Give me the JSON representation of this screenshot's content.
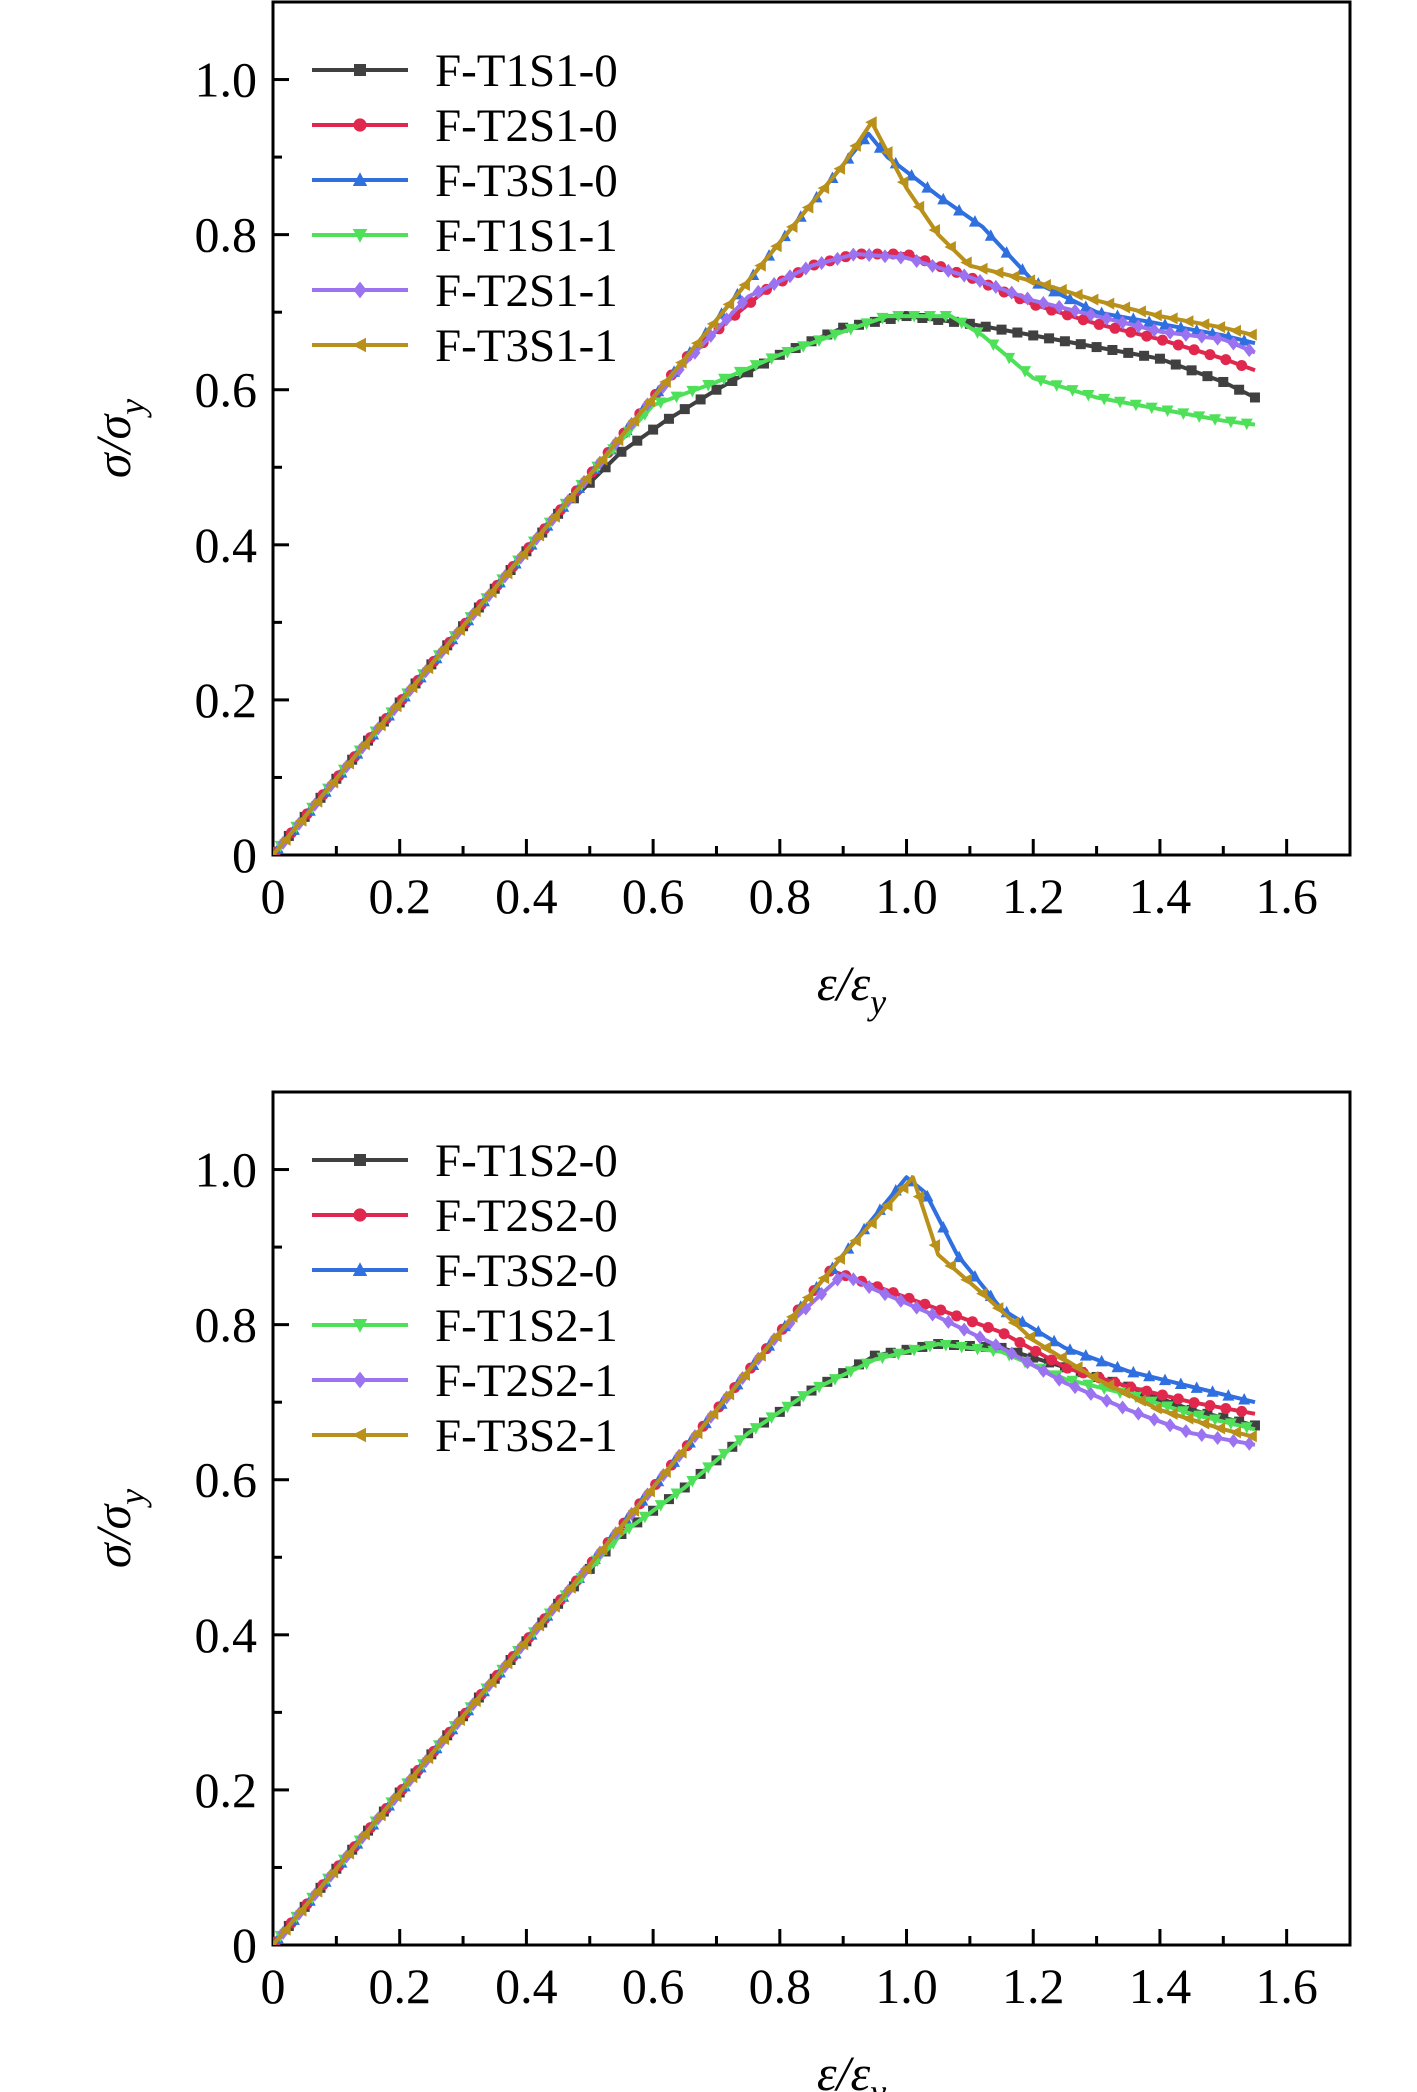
{
  "chart_data": [
    {
      "type": "line",
      "panel": "top",
      "xlabel": "ε/ε_y",
      "ylabel": "σ/σ_y",
      "xlim": [
        0,
        1.7
      ],
      "ylim": [
        0,
        1.1
      ],
      "xticks": [
        "0",
        "0.2",
        "0.4",
        "0.6",
        "0.8",
        "1.0",
        "1.2",
        "1.4",
        "1.6"
      ],
      "yticks": [
        "0",
        "0.2",
        "0.4",
        "0.6",
        "0.8",
        "1.0"
      ],
      "legend_position": "top-left",
      "series": [
        {
          "name": "F-T1S1-0",
          "color": "#404040",
          "marker": "square",
          "points": [
            [
              0,
              0
            ],
            [
              0.3,
              0.295
            ],
            [
              0.45,
              0.44
            ],
            [
              0.55,
              0.52
            ],
            [
              0.62,
              0.56
            ],
            [
              0.7,
              0.6
            ],
            [
              0.8,
              0.645
            ],
            [
              0.9,
              0.68
            ],
            [
              1.0,
              0.695
            ],
            [
              1.1,
              0.685
            ],
            [
              1.2,
              0.67
            ],
            [
              1.3,
              0.655
            ],
            [
              1.4,
              0.64
            ],
            [
              1.5,
              0.61
            ],
            [
              1.55,
              0.59
            ]
          ]
        },
        {
          "name": "F-T2S1-0",
          "color": "#e0284e",
          "marker": "circle",
          "points": [
            [
              0,
              0
            ],
            [
              0.3,
              0.295
            ],
            [
              0.5,
              0.49
            ],
            [
              0.6,
              0.59
            ],
            [
              0.65,
              0.64
            ],
            [
              0.72,
              0.69
            ],
            [
              0.78,
              0.73
            ],
            [
              0.85,
              0.76
            ],
            [
              0.92,
              0.775
            ],
            [
              1.0,
              0.775
            ],
            [
              1.1,
              0.745
            ],
            [
              1.2,
              0.71
            ],
            [
              1.3,
              0.685
            ],
            [
              1.4,
              0.665
            ],
            [
              1.5,
              0.64
            ],
            [
              1.55,
              0.625
            ]
          ]
        },
        {
          "name": "F-T3S1-0",
          "color": "#2f6fe0",
          "marker": "triangle-up",
          "points": [
            [
              0,
              0
            ],
            [
              0.3,
              0.295
            ],
            [
              0.5,
              0.49
            ],
            [
              0.6,
              0.59
            ],
            [
              0.7,
              0.69
            ],
            [
              0.8,
              0.79
            ],
            [
              0.9,
              0.89
            ],
            [
              0.94,
              0.93
            ],
            [
              0.97,
              0.9
            ],
            [
              1.05,
              0.85
            ],
            [
              1.12,
              0.81
            ],
            [
              1.2,
              0.74
            ],
            [
              1.3,
              0.7
            ],
            [
              1.4,
              0.685
            ],
            [
              1.5,
              0.67
            ],
            [
              1.55,
              0.66
            ]
          ]
        },
        {
          "name": "F-T1S1-1",
          "color": "#4fe05a",
          "marker": "triangle-down",
          "points": [
            [
              0,
              0
            ],
            [
              0.3,
              0.295
            ],
            [
              0.5,
              0.49
            ],
            [
              0.6,
              0.58
            ],
            [
              0.7,
              0.61
            ],
            [
              0.8,
              0.645
            ],
            [
              0.9,
              0.675
            ],
            [
              0.97,
              0.695
            ],
            [
              1.07,
              0.695
            ],
            [
              1.12,
              0.67
            ],
            [
              1.2,
              0.615
            ],
            [
              1.3,
              0.59
            ],
            [
              1.4,
              0.575
            ],
            [
              1.5,
              0.56
            ],
            [
              1.55,
              0.555
            ]
          ]
        },
        {
          "name": "F-T2S1-1",
          "color": "#9b72f0",
          "marker": "diamond",
          "points": [
            [
              0,
              0
            ],
            [
              0.3,
              0.295
            ],
            [
              0.5,
              0.49
            ],
            [
              0.6,
              0.59
            ],
            [
              0.68,
              0.66
            ],
            [
              0.75,
              0.72
            ],
            [
              0.85,
              0.76
            ],
            [
              0.92,
              0.775
            ],
            [
              1.0,
              0.77
            ],
            [
              1.1,
              0.745
            ],
            [
              1.2,
              0.715
            ],
            [
              1.3,
              0.695
            ],
            [
              1.4,
              0.675
            ],
            [
              1.5,
              0.665
            ],
            [
              1.55,
              0.648
            ]
          ]
        },
        {
          "name": "F-T3S1-1",
          "color": "#b8901a",
          "marker": "triangle-left",
          "points": [
            [
              0,
              0
            ],
            [
              0.3,
              0.295
            ],
            [
              0.5,
              0.49
            ],
            [
              0.6,
              0.59
            ],
            [
              0.7,
              0.69
            ],
            [
              0.8,
              0.79
            ],
            [
              0.9,
              0.89
            ],
            [
              0.945,
              0.945
            ],
            [
              1.0,
              0.86
            ],
            [
              1.05,
              0.8
            ],
            [
              1.1,
              0.76
            ],
            [
              1.2,
              0.74
            ],
            [
              1.3,
              0.715
            ],
            [
              1.4,
              0.695
            ],
            [
              1.5,
              0.68
            ],
            [
              1.55,
              0.67
            ]
          ]
        }
      ]
    },
    {
      "type": "line",
      "panel": "bottom",
      "xlabel": "ε/ε_y",
      "ylabel": "σ/σ_y",
      "xlim": [
        0,
        1.7
      ],
      "ylim": [
        0,
        1.1
      ],
      "xticks": [
        "0",
        "0.2",
        "0.4",
        "0.6",
        "0.8",
        "1.0",
        "1.2",
        "1.4",
        "1.6"
      ],
      "yticks": [
        "0",
        "0.2",
        "0.4",
        "0.6",
        "0.8",
        "1.0"
      ],
      "legend_position": "top-left",
      "series": [
        {
          "name": "F-T1S2-0",
          "color": "#404040",
          "marker": "square",
          "points": [
            [
              0,
              0
            ],
            [
              0.3,
              0.295
            ],
            [
              0.45,
              0.44
            ],
            [
              0.55,
              0.53
            ],
            [
              0.65,
              0.59
            ],
            [
              0.75,
              0.66
            ],
            [
              0.85,
              0.715
            ],
            [
              0.95,
              0.76
            ],
            [
              1.05,
              0.775
            ],
            [
              1.15,
              0.77
            ],
            [
              1.25,
              0.745
            ],
            [
              1.35,
              0.72
            ],
            [
              1.45,
              0.69
            ],
            [
              1.55,
              0.67
            ]
          ]
        },
        {
          "name": "F-T2S2-0",
          "color": "#e0284e",
          "marker": "circle",
          "points": [
            [
              0,
              0
            ],
            [
              0.3,
              0.295
            ],
            [
              0.5,
              0.49
            ],
            [
              0.6,
              0.59
            ],
            [
              0.7,
              0.69
            ],
            [
              0.8,
              0.79
            ],
            [
              0.88,
              0.87
            ],
            [
              0.95,
              0.85
            ],
            [
              1.05,
              0.82
            ],
            [
              1.15,
              0.79
            ],
            [
              1.25,
              0.745
            ],
            [
              1.35,
              0.72
            ],
            [
              1.45,
              0.7
            ],
            [
              1.55,
              0.685
            ]
          ]
        },
        {
          "name": "F-T3S2-0",
          "color": "#2f6fe0",
          "marker": "triangle-up",
          "points": [
            [
              0,
              0
            ],
            [
              0.3,
              0.295
            ],
            [
              0.5,
              0.49
            ],
            [
              0.6,
              0.59
            ],
            [
              0.7,
              0.69
            ],
            [
              0.8,
              0.79
            ],
            [
              0.9,
              0.89
            ],
            [
              1.0,
              0.99
            ],
            [
              1.03,
              0.97
            ],
            [
              1.08,
              0.89
            ],
            [
              1.15,
              0.82
            ],
            [
              1.25,
              0.77
            ],
            [
              1.35,
              0.74
            ],
            [
              1.45,
              0.72
            ],
            [
              1.55,
              0.7
            ]
          ]
        },
        {
          "name": "F-T1S2-1",
          "color": "#4fe05a",
          "marker": "triangle-down",
          "points": [
            [
              0,
              0
            ],
            [
              0.3,
              0.295
            ],
            [
              0.45,
              0.44
            ],
            [
              0.55,
              0.53
            ],
            [
              0.65,
              0.59
            ],
            [
              0.75,
              0.66
            ],
            [
              0.85,
              0.715
            ],
            [
              0.95,
              0.755
            ],
            [
              1.05,
              0.775
            ],
            [
              1.15,
              0.765
            ],
            [
              1.25,
              0.73
            ],
            [
              1.35,
              0.71
            ],
            [
              1.45,
              0.685
            ],
            [
              1.55,
              0.665
            ]
          ]
        },
        {
          "name": "F-T2S2-1",
          "color": "#9b72f0",
          "marker": "diamond",
          "points": [
            [
              0,
              0
            ],
            [
              0.3,
              0.295
            ],
            [
              0.5,
              0.49
            ],
            [
              0.6,
              0.59
            ],
            [
              0.7,
              0.69
            ],
            [
              0.8,
              0.79
            ],
            [
              0.9,
              0.865
            ],
            [
              0.95,
              0.845
            ],
            [
              1.05,
              0.81
            ],
            [
              1.15,
              0.77
            ],
            [
              1.25,
              0.725
            ],
            [
              1.35,
              0.69
            ],
            [
              1.45,
              0.66
            ],
            [
              1.55,
              0.645
            ]
          ]
        },
        {
          "name": "F-T3S2-1",
          "color": "#b8901a",
          "marker": "triangle-left",
          "points": [
            [
              0,
              0
            ],
            [
              0.3,
              0.295
            ],
            [
              0.5,
              0.49
            ],
            [
              0.6,
              0.59
            ],
            [
              0.7,
              0.69
            ],
            [
              0.8,
              0.79
            ],
            [
              0.9,
              0.89
            ],
            [
              1.01,
              0.99
            ],
            [
              1.05,
              0.89
            ],
            [
              1.12,
              0.84
            ],
            [
              1.2,
              0.78
            ],
            [
              1.3,
              0.73
            ],
            [
              1.4,
              0.69
            ],
            [
              1.5,
              0.665
            ],
            [
              1.55,
              0.655
            ]
          ]
        }
      ]
    }
  ]
}
